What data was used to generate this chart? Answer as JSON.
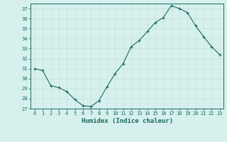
{
  "x": [
    0,
    1,
    2,
    3,
    4,
    5,
    6,
    7,
    8,
    9,
    10,
    11,
    12,
    13,
    14,
    15,
    16,
    17,
    18,
    19,
    20,
    21,
    22,
    23
  ],
  "y": [
    31.0,
    30.8,
    29.3,
    29.1,
    28.7,
    27.9,
    27.3,
    27.2,
    27.8,
    29.2,
    30.5,
    31.5,
    33.2,
    33.8,
    34.7,
    35.6,
    36.1,
    37.3,
    37.0,
    36.6,
    35.3,
    34.2,
    33.2,
    32.4
  ],
  "xlabel": "Humidex (Indice chaleur)",
  "ylim": [
    27,
    37.5
  ],
  "xlim": [
    -0.5,
    23.5
  ],
  "yticks": [
    27,
    28,
    29,
    30,
    31,
    32,
    33,
    34,
    35,
    36,
    37
  ],
  "xticks": [
    0,
    1,
    2,
    3,
    4,
    5,
    6,
    7,
    8,
    9,
    10,
    11,
    12,
    13,
    14,
    15,
    16,
    17,
    18,
    19,
    20,
    21,
    22,
    23
  ],
  "line_color": "#1a6b5a",
  "marker": "+",
  "bg_color": "#d6f0ee",
  "grid_color": "#c8e0dc",
  "text_color": "#1a6b5a"
}
